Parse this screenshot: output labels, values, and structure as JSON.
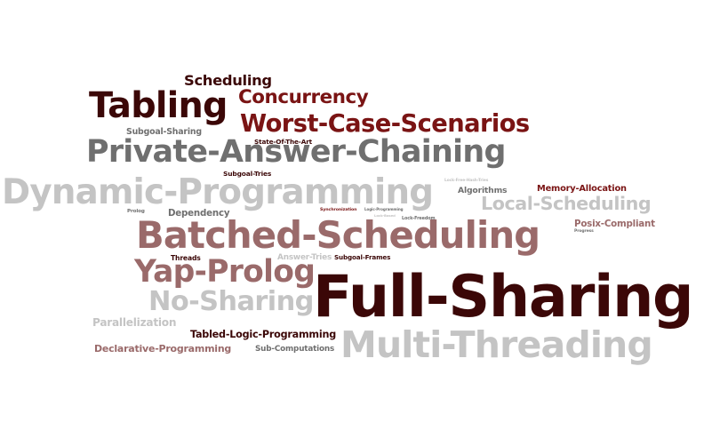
{
  "colors": {
    "dark_brown": "#3b0707",
    "maroon": "#7a1414",
    "rose": "#9a6a6a",
    "dark_gray": "#6f6f6f",
    "light_gray": "#c4c4c4"
  },
  "words": [
    {
      "text": "Full-Sharing",
      "color": "#3b0707"
    },
    {
      "text": "Multi-Threading",
      "color": "#c4c4c4"
    },
    {
      "text": "Batched-Scheduling",
      "color": "#9a6a6a"
    },
    {
      "text": "Dynamic-Programming",
      "color": "#c4c4c4"
    },
    {
      "text": "Private-Answer-Chaining",
      "color": "#6f6f6f"
    },
    {
      "text": "Tabling",
      "color": "#3b0707"
    },
    {
      "text": "Worst-Case-Scenarios",
      "color": "#7a1414"
    },
    {
      "text": "Yap-Prolog",
      "color": "#9a6a6a"
    },
    {
      "text": "No-Sharing",
      "color": "#c4c4c4"
    },
    {
      "text": "Concurrency",
      "color": "#7a1414"
    },
    {
      "text": "Local-Scheduling",
      "color": "#c4c4c4"
    },
    {
      "text": "Scheduling",
      "color": "#3b0707"
    },
    {
      "text": "Tabled-Logic-Programming",
      "color": "#3b0707"
    },
    {
      "text": "Declarative-Programming",
      "color": "#9a6a6a"
    },
    {
      "text": "Parallelization",
      "color": "#c4c4c4"
    },
    {
      "text": "Posix-Compliant",
      "color": "#9a6a6a"
    },
    {
      "text": "Memory-Allocation",
      "color": "#7a1414"
    },
    {
      "text": "Dependency",
      "color": "#6f6f6f"
    },
    {
      "text": "Sub-Computations",
      "color": "#6f6f6f"
    },
    {
      "text": "Subgoal-Sharing",
      "color": "#6f6f6f"
    },
    {
      "text": "Algorithms",
      "color": "#6f6f6f"
    },
    {
      "text": "Answer-Tries",
      "color": "#c4c4c4"
    },
    {
      "text": "Subgoal-Frames",
      "color": "#3b0707"
    },
    {
      "text": "State-Of-The-Art",
      "color": "#3b0707"
    },
    {
      "text": "Subgoal-Tries",
      "color": "#3b0707"
    },
    {
      "text": "Threads",
      "color": "#3b0707"
    },
    {
      "text": "Prolog",
      "color": "#6f6f6f"
    },
    {
      "text": "Synchronization",
      "color": "#7a1414"
    },
    {
      "text": "Logic-Programming",
      "color": "#6f6f6f"
    },
    {
      "text": "Lock-Freedom",
      "color": "#6f6f6f"
    },
    {
      "text": "Lock-Free-Hash-Tries",
      "color": "#c4c4c4"
    },
    {
      "text": "Lock-Based",
      "color": "#c4c4c4"
    },
    {
      "text": "Progress",
      "color": "#6f6f6f"
    }
  ]
}
